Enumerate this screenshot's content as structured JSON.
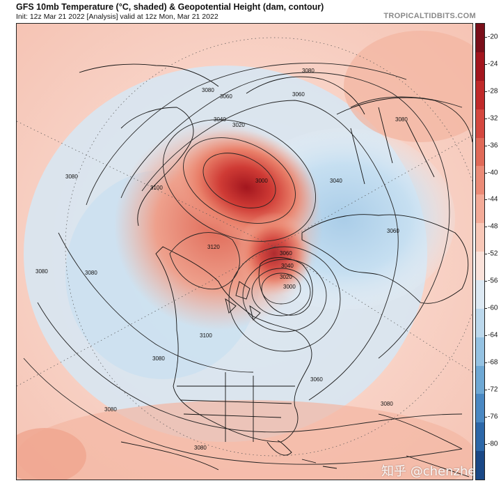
{
  "header": {
    "title": "GFS 10mb Temperature (°C, shaded) & Geopotential Height (dam, contour)",
    "subtitle": "Init: 12z Mar 21 2022   [Analysis]   valid at 12z Mon, Mar 21 2022",
    "source": "TROPICALTIDBITS.COM"
  },
  "colorbar": {
    "labels": [
      "-20",
      "-24",
      "-28",
      "-32",
      "-36",
      "-40",
      "-44",
      "-48",
      "-52",
      "-56",
      "-60",
      "-64",
      "-68",
      "-72",
      "-76",
      "-80"
    ],
    "colors": [
      "#7a0f1a",
      "#a3161e",
      "#c02a2a",
      "#d4483f",
      "#e06a58",
      "#eb8b77",
      "#f3ab98",
      "#f8c8b8",
      "#fae2da",
      "#dde9f3",
      "#bcd8ec",
      "#95c2e2",
      "#6ea8d4",
      "#4a88c2",
      "#2c67a8",
      "#1a4886"
    ]
  },
  "map": {
    "contour_labels": [
      "3080",
      "3080",
      "3060",
      "3060",
      "3040",
      "3020",
      "3000",
      "3060",
      "3040",
      "3020",
      "3000",
      "3080",
      "3100",
      "3120",
      "3080",
      "3080",
      "3080",
      "3060",
      "3100",
      "3080",
      "3080",
      "3060",
      "3080",
      "3080",
      "3040"
    ],
    "warm_color": "#f2a48e",
    "cold_color": "#bfd9ee",
    "core_color": "#a3161e"
  },
  "watermark": "知乎 @chenzhe"
}
